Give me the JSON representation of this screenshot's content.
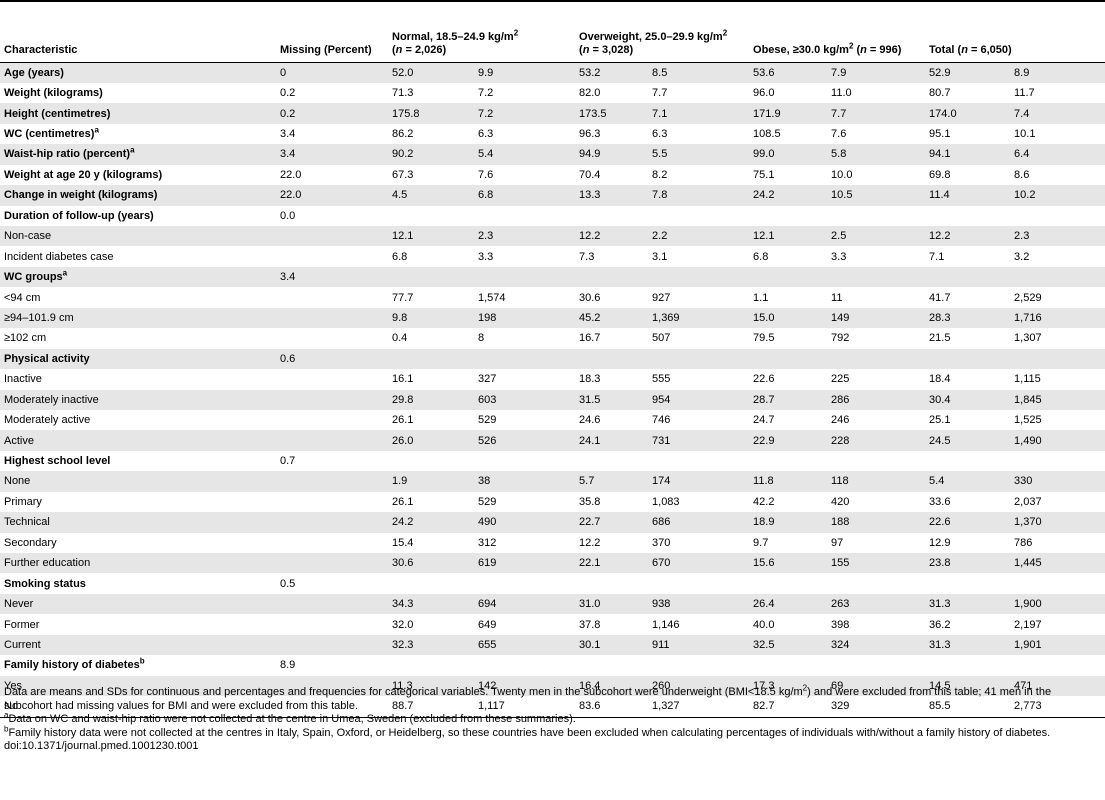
{
  "header": {
    "characteristic": "Characteristic",
    "missing": "Missing (Percent)",
    "normal_line1": "Normal, 18.5–24.9 kg/m",
    "normal_sup": "2",
    "normal_n_pre": "(",
    "normal_n_italic": "n",
    "normal_n_post": " = 2,026)",
    "overweight_line1": "Overweight, 25.0–29.9 kg/m",
    "overweight_sup": "2",
    "overweight_n_pre": "(",
    "overweight_n_italic": "n",
    "overweight_n_post": " = 3,028)",
    "obese_text": "Obese, ≥30.0 kg/m",
    "obese_sup": "2",
    "obese_n_pre": " (",
    "obese_n_italic": "n",
    "obese_n_post": " = 996)",
    "total_text": "Total (",
    "total_n_italic": "n",
    "total_n_post": " = 6,050)"
  },
  "rows": [
    {
      "label": "Age (years)",
      "sup": "",
      "bold": true,
      "missing": "0",
      "v": [
        "52.0",
        "9.9",
        "53.2",
        "8.5",
        "53.6",
        "7.9",
        "52.9",
        "8.9"
      ]
    },
    {
      "label": "Weight (kilograms)",
      "sup": "",
      "bold": true,
      "missing": "0.2",
      "v": [
        "71.3",
        "7.2",
        "82.0",
        "7.7",
        "96.0",
        "11.0",
        "80.7",
        "11.7"
      ]
    },
    {
      "label": "Height (centimetres)",
      "sup": "",
      "bold": true,
      "missing": "0.2",
      "v": [
        "175.8",
        "7.2",
        "173.5",
        "7.1",
        "171.9",
        "7.7",
        "174.0",
        "7.4"
      ]
    },
    {
      "label": "WC (centimetres)",
      "sup": "a",
      "bold": true,
      "missing": "3.4",
      "v": [
        "86.2",
        "6.3",
        "96.3",
        "6.3",
        "108.5",
        "7.6",
        "95.1",
        "10.1"
      ]
    },
    {
      "label": "Waist-hip ratio (percent)",
      "sup": "a",
      "bold": true,
      "missing": "3.4",
      "v": [
        "90.2",
        "5.4",
        "94.9",
        "5.5",
        "99.0",
        "5.8",
        "94.1",
        "6.4"
      ]
    },
    {
      "label": "Weight at age 20 y (kilograms)",
      "sup": "",
      "bold": true,
      "missing": "22.0",
      "v": [
        "67.3",
        "7.6",
        "70.4",
        "8.2",
        "75.1",
        "10.0",
        "69.8",
        "8.6"
      ]
    },
    {
      "label": "Change in weight (kilograms)",
      "sup": "",
      "bold": true,
      "missing": "22.0",
      "v": [
        "4.5",
        "6.8",
        "13.3",
        "7.8",
        "24.2",
        "10.5",
        "11.4",
        "10.2"
      ]
    },
    {
      "label": "Duration of follow-up (years)",
      "sup": "",
      "bold": true,
      "missing": "0.0",
      "v": [
        "",
        "",
        "",
        "",
        "",
        "",
        "",
        ""
      ]
    },
    {
      "label": "Non-case",
      "sup": "",
      "bold": false,
      "missing": "",
      "v": [
        "12.1",
        "2.3",
        "12.2",
        "2.2",
        "12.1",
        "2.5",
        "12.2",
        "2.3"
      ]
    },
    {
      "label": "Incident diabetes case",
      "sup": "",
      "bold": false,
      "missing": "",
      "v": [
        "6.8",
        "3.3",
        "7.3",
        "3.1",
        "6.8",
        "3.3",
        "7.1",
        "3.2"
      ]
    },
    {
      "label": "WC groups",
      "sup": "a",
      "bold": true,
      "missing": "3.4",
      "v": [
        "",
        "",
        "",
        "",
        "",
        "",
        "",
        ""
      ]
    },
    {
      "label": "<94 cm",
      "sup": "",
      "bold": false,
      "missing": "",
      "v": [
        "77.7",
        "1,574",
        "30.6",
        "927",
        "1.1",
        "11",
        "41.7",
        "2,529"
      ]
    },
    {
      "label": "≥94–101.9 cm",
      "sup": "",
      "bold": false,
      "missing": "",
      "v": [
        "9.8",
        "198",
        "45.2",
        "1,369",
        "15.0",
        "149",
        "28.3",
        "1,716"
      ]
    },
    {
      "label": "≥102 cm",
      "sup": "",
      "bold": false,
      "missing": "",
      "v": [
        "0.4",
        "8",
        "16.7",
        "507",
        "79.5",
        "792",
        "21.5",
        "1,307"
      ]
    },
    {
      "label": "Physical activity",
      "sup": "",
      "bold": true,
      "missing": "0.6",
      "v": [
        "",
        "",
        "",
        "",
        "",
        "",
        "",
        ""
      ]
    },
    {
      "label": "Inactive",
      "sup": "",
      "bold": false,
      "missing": "",
      "v": [
        "16.1",
        "327",
        "18.3",
        "555",
        "22.6",
        "225",
        "18.4",
        "1,115"
      ]
    },
    {
      "label": "Moderately inactive",
      "sup": "",
      "bold": false,
      "missing": "",
      "v": [
        "29.8",
        "603",
        "31.5",
        "954",
        "28.7",
        "286",
        "30.4",
        "1,845"
      ]
    },
    {
      "label": "Moderately active",
      "sup": "",
      "bold": false,
      "missing": "",
      "v": [
        "26.1",
        "529",
        "24.6",
        "746",
        "24.7",
        "246",
        "25.1",
        "1,525"
      ]
    },
    {
      "label": "Active",
      "sup": "",
      "bold": false,
      "missing": "",
      "v": [
        "26.0",
        "526",
        "24.1",
        "731",
        "22.9",
        "228",
        "24.5",
        "1,490"
      ]
    },
    {
      "label": "Highest school level",
      "sup": "",
      "bold": true,
      "missing": "0.7",
      "v": [
        "",
        "",
        "",
        "",
        "",
        "",
        "",
        ""
      ]
    },
    {
      "label": "None",
      "sup": "",
      "bold": false,
      "missing": "",
      "v": [
        "1.9",
        "38",
        "5.7",
        "174",
        "11.8",
        "118",
        "5.4",
        "330"
      ]
    },
    {
      "label": "Primary",
      "sup": "",
      "bold": false,
      "missing": "",
      "v": [
        "26.1",
        "529",
        "35.8",
        "1,083",
        "42.2",
        "420",
        "33.6",
        "2,037"
      ]
    },
    {
      "label": "Technical",
      "sup": "",
      "bold": false,
      "missing": "",
      "v": [
        "24.2",
        "490",
        "22.7",
        "686",
        "18.9",
        "188",
        "22.6",
        "1,370"
      ]
    },
    {
      "label": "Secondary",
      "sup": "",
      "bold": false,
      "missing": "",
      "v": [
        "15.4",
        "312",
        "12.2",
        "370",
        "9.7",
        "97",
        "12.9",
        "786"
      ]
    },
    {
      "label": "Further education",
      "sup": "",
      "bold": false,
      "missing": "",
      "v": [
        "30.6",
        "619",
        "22.1",
        "670",
        "15.6",
        "155",
        "23.8",
        "1,445"
      ]
    },
    {
      "label": "Smoking status",
      "sup": "",
      "bold": true,
      "missing": "0.5",
      "v": [
        "",
        "",
        "",
        "",
        "",
        "",
        "",
        ""
      ]
    },
    {
      "label": "Never",
      "sup": "",
      "bold": false,
      "missing": "",
      "v": [
        "34.3",
        "694",
        "31.0",
        "938",
        "26.4",
        "263",
        "31.3",
        "1,900"
      ]
    },
    {
      "label": "Former",
      "sup": "",
      "bold": false,
      "missing": "",
      "v": [
        "32.0",
        "649",
        "37.8",
        "1,146",
        "40.0",
        "398",
        "36.2",
        "2,197"
      ]
    },
    {
      "label": "Current",
      "sup": "",
      "bold": false,
      "missing": "",
      "v": [
        "32.3",
        "655",
        "30.1",
        "911",
        "32.5",
        "324",
        "31.3",
        "1,901"
      ]
    },
    {
      "label": "Family history of diabetes",
      "sup": "b",
      "bold": true,
      "missing": "8.9",
      "v": [
        "",
        "",
        "",
        "",
        "",
        "",
        "",
        ""
      ]
    },
    {
      "label": "Yes",
      "sup": "",
      "bold": false,
      "missing": "",
      "v": [
        "11.3",
        "142",
        "16.4",
        "260",
        "17.3",
        "69",
        "14.5",
        "471"
      ]
    },
    {
      "label": "No",
      "sup": "",
      "bold": false,
      "missing": "",
      "v": [
        "88.7",
        "1,117",
        "83.6",
        "1,327",
        "82.7",
        "329",
        "85.5",
        "2,773"
      ]
    }
  ],
  "notes": {
    "main_part1": "Data are means and SDs for continuous and percentages and frequencies for categorical variables. Twenty men in the subcohort were underweight (BMI<18.5 kg/m",
    "main_sup": "2",
    "main_part2": ") and were excluded from this table; 41 men in the subcohort had missing values for BMI and were excluded from this table.",
    "a_mark": "a",
    "a_text": "Data on WC and waist-hip ratio were not collected at the centre in Umea, Sweden (excluded from these summaries).",
    "b_mark": "b",
    "b_text": "Family history data were not collected at the centres in Italy, Spain, Oxford, or Heidelberg, so these countries have been excluded when calculating percentages of individuals with/without a family history of diabetes.",
    "doi": "doi:10.1371/journal.pmed.1001230.t001"
  }
}
